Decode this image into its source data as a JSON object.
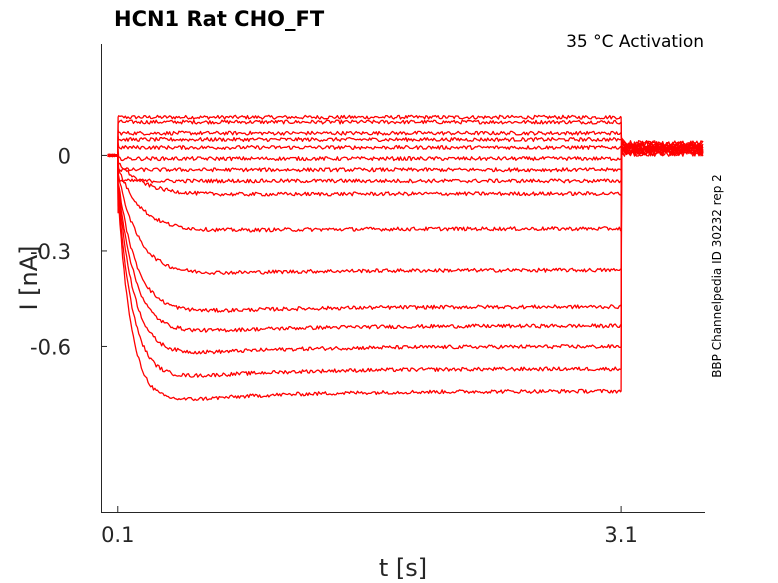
{
  "chart_data": {
    "type": "line",
    "title": "HCN1  Rat  CHO_FT",
    "annotation": "35 °C  Activation",
    "side_label": "BBP Channelpedia ID 30232 rep 2",
    "xlabel": "t [s]",
    "ylabel": "I [nA]",
    "xlim": [
      0.0,
      3.6
    ],
    "ylim": [
      -1.12,
      0.35
    ],
    "xticks": [
      0.1,
      3.1
    ],
    "xtick_labels": [
      "0.1",
      "3.1"
    ],
    "yticks": [
      0,
      -0.3,
      -0.6
    ],
    "ytick_labels": [
      "0",
      "-0.3",
      "-0.6"
    ],
    "grid": false,
    "color": "#ff0000",
    "step_start": 0.1,
    "step_end": 3.1,
    "holding_current": 0.0,
    "tail_current": 0.01,
    "series": [
      {
        "steady": 0.12
      },
      {
        "steady": 0.105
      },
      {
        "steady": 0.07
      },
      {
        "steady": 0.05
      },
      {
        "steady": 0.025
      },
      {
        "steady": -0.01
      },
      {
        "steady": -0.045
      },
      {
        "steady": -0.08
      },
      {
        "steady": -0.12
      },
      {
        "steady": -0.23
      },
      {
        "steady": -0.36
      },
      {
        "steady": -0.475
      },
      {
        "steady": -0.535
      },
      {
        "steady": -0.6
      },
      {
        "steady": -0.67
      },
      {
        "steady": -0.74
      }
    ]
  }
}
